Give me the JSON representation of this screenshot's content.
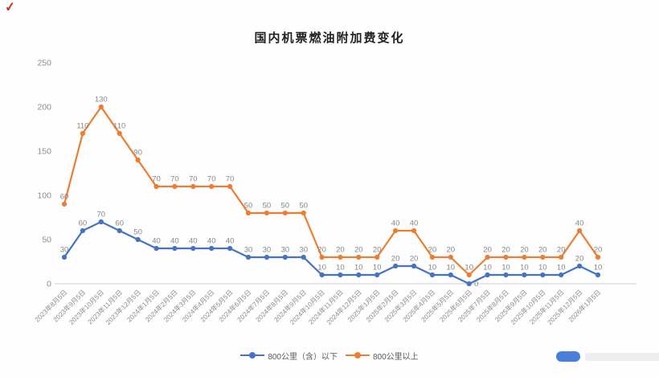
{
  "page": {
    "corner_mark": "✓"
  },
  "watermark": {
    "badge_color": "#4a7edc"
  },
  "chart_data": {
    "type": "line",
    "title": "国内机票燃油附加费变化",
    "stacked": true,
    "x": [
      "2023年8月5日",
      "2023年9月5日",
      "2023年10月5日",
      "2023年11月5日",
      "2023年12月5日",
      "2024年1月5日",
      "2024年2月5日",
      "2024年3月5日",
      "2024年4月5日",
      "2024年5月5日",
      "2024年6月5日",
      "2024年7月5日",
      "2024年8月5日",
      "2024年9月5日",
      "2024年10月5日",
      "2024年11月5日",
      "2024年12月5日",
      "2025年1月5日",
      "2025年2月5日",
      "2025年3月5日",
      "2025年4月5日",
      "2025年5月5日",
      "2025年6月5日",
      "2025年7月5日",
      "2025年8月5日",
      "2025年9月5日",
      "2025年10月5日",
      "2025年11月5日",
      "2025年12月5日",
      "2026年1月5日"
    ],
    "series": [
      {
        "name": "800公里（含）以下",
        "color": "#4472c4",
        "values": [
          30,
          60,
          70,
          60,
          50,
          40,
          40,
          40,
          40,
          40,
          30,
          30,
          30,
          30,
          10,
          10,
          10,
          10,
          20,
          20,
          10,
          10,
          0,
          10,
          10,
          10,
          10,
          10,
          20,
          10
        ]
      },
      {
        "name": "800公里以上",
        "color": "#ed7d31",
        "values": [
          60,
          110,
          130,
          110,
          90,
          70,
          70,
          70,
          70,
          70,
          50,
          50,
          50,
          50,
          20,
          20,
          20,
          20,
          40,
          40,
          20,
          20,
          10,
          20,
          20,
          20,
          20,
          20,
          40,
          20
        ]
      }
    ],
    "y_ticks": [
      0,
      50,
      100,
      150,
      200,
      250
    ],
    "ylim": [
      0,
      250
    ],
    "xlabel": "",
    "ylabel": "",
    "grid": false,
    "data_labels": true,
    "legend_position": "bottom",
    "label_color": "#858585",
    "axis_text_color": "#8c8c8c",
    "axis_line_color": "#d9d9d9"
  }
}
